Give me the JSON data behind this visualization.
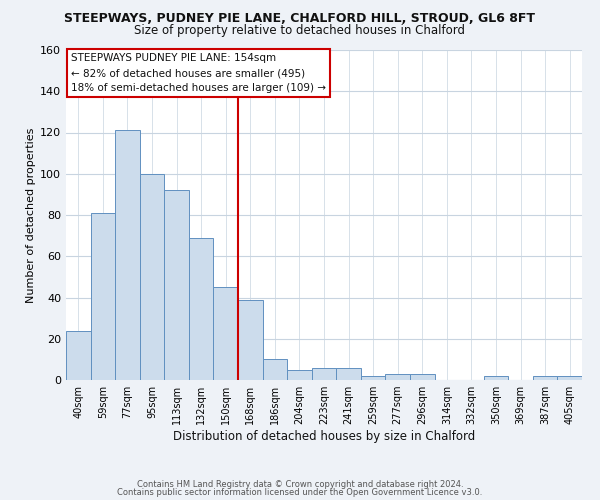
{
  "title": "STEEPWAYS, PUDNEY PIE LANE, CHALFORD HILL, STROUD, GL6 8FT",
  "subtitle": "Size of property relative to detached houses in Chalford",
  "xlabel": "Distribution of detached houses by size in Chalford",
  "ylabel": "Number of detached properties",
  "bar_labels": [
    "40sqm",
    "59sqm",
    "77sqm",
    "95sqm",
    "113sqm",
    "132sqm",
    "150sqm",
    "168sqm",
    "186sqm",
    "204sqm",
    "223sqm",
    "241sqm",
    "259sqm",
    "277sqm",
    "296sqm",
    "314sqm",
    "332sqm",
    "350sqm",
    "369sqm",
    "387sqm",
    "405sqm"
  ],
  "bar_values": [
    24,
    81,
    121,
    100,
    92,
    69,
    45,
    39,
    10,
    5,
    6,
    6,
    2,
    3,
    3,
    0,
    0,
    2,
    0,
    2,
    2
  ],
  "bar_color": "#ccdcec",
  "bar_edge_color": "#6090c0",
  "vline_x": 6.5,
  "vline_color": "#cc0000",
  "ylim": [
    0,
    160
  ],
  "yticks": [
    0,
    20,
    40,
    60,
    80,
    100,
    120,
    140,
    160
  ],
  "annotation_title": "STEEPWAYS PUDNEY PIE LANE: 154sqm",
  "annotation_line1": "← 82% of detached houses are smaller (495)",
  "annotation_line2": "18% of semi-detached houses are larger (109) →",
  "annotation_box_color": "#ffffff",
  "annotation_box_edge": "#cc0000",
  "footer1": "Contains HM Land Registry data © Crown copyright and database right 2024.",
  "footer2": "Contains public sector information licensed under the Open Government Licence v3.0.",
  "background_color": "#eef2f7",
  "plot_background": "#ffffff",
  "grid_color": "#c8d4e0"
}
